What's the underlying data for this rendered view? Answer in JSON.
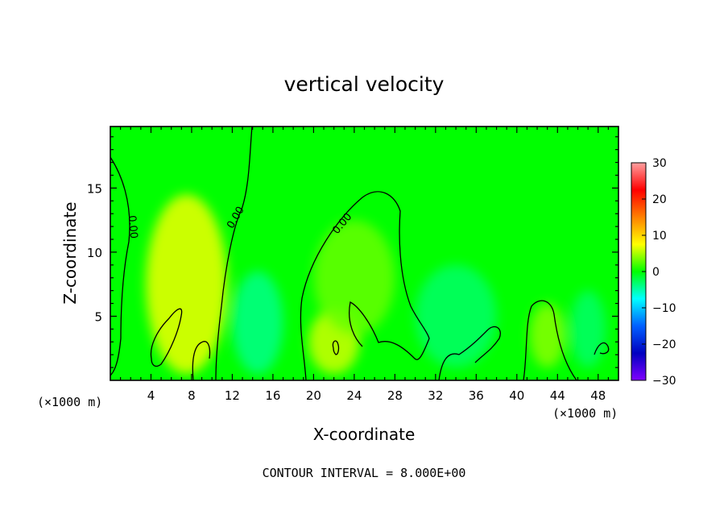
{
  "chart_data": {
    "type": "heatmap",
    "title": "vertical velocity",
    "xlabel": "X-coordinate",
    "ylabel": "Z-coordinate",
    "x_unit_left": "(×1000 m)",
    "x_unit_right": "(×1000 m)",
    "xlim": [
      0,
      50
    ],
    "ylim": [
      0,
      19.8
    ],
    "x_ticks": [
      4,
      8,
      12,
      16,
      20,
      24,
      28,
      32,
      36,
      40,
      44,
      48
    ],
    "y_ticks": [
      5,
      10,
      15
    ],
    "colorbar": {
      "range": [
        -30,
        30
      ],
      "ticks": [
        30,
        20,
        10,
        0,
        -10,
        -20,
        -30
      ],
      "tick_labels": [
        "30",
        "20",
        "10",
        "0",
        "−10",
        "−20",
        "−30"
      ],
      "colors": [
        "#ffa0a0",
        "#ff0000",
        "#ff8000",
        "#ffff00",
        "#00ff00",
        "#00ffff",
        "#0060ff",
        "#0000c0",
        "#8000ff"
      ]
    },
    "field_background_value": 0,
    "features": [
      {
        "kind": "updraft",
        "x_center": 7.5,
        "z_center": 7.5,
        "x_width": 8,
        "z_height": 14,
        "peak": 7
      },
      {
        "kind": "updraft",
        "x_center": 22,
        "z_center": 3,
        "x_width": 5,
        "z_height": 5,
        "peak": 6
      },
      {
        "kind": "updraft",
        "x_center": 24,
        "z_center": 8,
        "x_width": 8,
        "z_height": 9,
        "peak": 3
      },
      {
        "kind": "updraft",
        "x_center": 43,
        "z_center": 3.5,
        "x_width": 3.5,
        "z_height": 5,
        "peak": 4
      },
      {
        "kind": "downdraft",
        "x_center": 14.5,
        "z_center": 4.5,
        "x_width": 5,
        "z_height": 8,
        "peak": -4
      },
      {
        "kind": "downdraft",
        "x_center": 34,
        "z_center": 5,
        "x_width": 8,
        "z_height": 8,
        "peak": -3
      },
      {
        "kind": "downdraft",
        "x_center": 47,
        "z_center": 4,
        "x_width": 3.5,
        "z_height": 6,
        "peak": -3
      }
    ],
    "contour_labels": [
      "0.00",
      "0.00",
      "0.00"
    ],
    "contour_interval_label": "CONTOUR INTERVAL = 8.000E+00"
  }
}
